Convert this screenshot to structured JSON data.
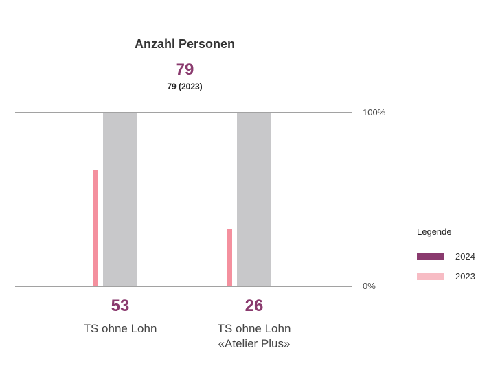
{
  "title": "Anzahl Personen",
  "total": "79",
  "total_prev": "79 (2023)",
  "legend": {
    "title": "Legende",
    "items": [
      {
        "label": "2024",
        "color": "#8a3a6e"
      },
      {
        "label": "2023",
        "color": "#f7bcc4"
      }
    ]
  },
  "colors": {
    "bar_2023": "#f4909e",
    "bar_2024_background": "#c8c8ca",
    "value_text": "#8a3a6e"
  },
  "chart_data": {
    "type": "bar",
    "ylim": [
      0,
      100
    ],
    "y_unit": "%",
    "y_ticks": [
      "100%",
      "0%"
    ],
    "categories": [
      {
        "label": "TS ohne Lohn",
        "value_label": "53",
        "value_2024_pct": 0,
        "value_2023_pct": 67
      },
      {
        "label": "TS ohne Lohn\n«Atelier Plus»",
        "value_label": "26",
        "value_2024_pct": 0,
        "value_2023_pct": 33
      }
    ],
    "series": [
      {
        "name": "2024",
        "values": [
          0,
          0
        ]
      },
      {
        "name": "2023",
        "values": [
          67,
          33
        ]
      }
    ]
  }
}
